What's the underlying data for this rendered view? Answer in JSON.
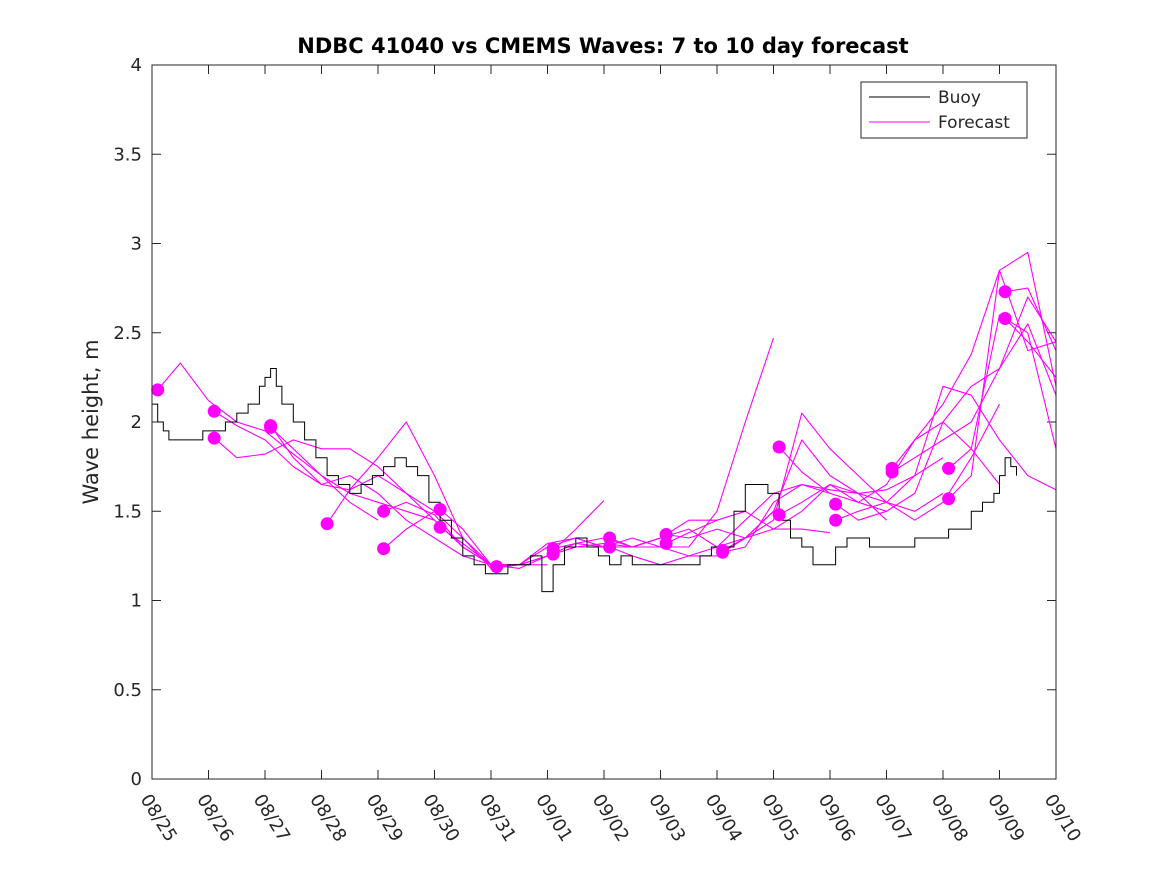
{
  "chart_data": {
    "type": "line",
    "title": "NDBC 41040 vs CMEMS Waves: 7 to 10 day forecast",
    "xlabel": "",
    "ylabel": "Wave height, m",
    "xlim": [
      0,
      16
    ],
    "ylim": [
      0,
      4
    ],
    "x_tick_labels": [
      "08/25",
      "08/26",
      "08/27",
      "08/28",
      "08/29",
      "08/30",
      "08/31",
      "09/01",
      "09/02",
      "09/03",
      "09/04",
      "09/05",
      "09/06",
      "09/07",
      "09/08",
      "09/09",
      "09/10"
    ],
    "y_ticks": [
      0,
      0.5,
      1,
      1.5,
      2,
      2.5,
      3,
      3.5,
      4
    ],
    "y_tick_labels": [
      "0",
      "0.5",
      "1",
      "1.5",
      "2",
      "2.5",
      "3",
      "3.5",
      "4"
    ],
    "legend": {
      "placement": "top-right",
      "entries": [
        {
          "label": "Buoy",
          "color": "#000000"
        },
        {
          "label": "Forecast",
          "color": "#ff00ff"
        }
      ]
    },
    "colors": {
      "buoy": "#000000",
      "forecast": "#ff00ff",
      "axis": "#262626"
    },
    "buoy": {
      "name": "Buoy",
      "x": [
        0,
        0.1,
        0.2,
        0.3,
        0.5,
        0.7,
        0.9,
        1.1,
        1.3,
        1.5,
        1.7,
        1.9,
        2.0,
        2.1,
        2.2,
        2.3,
        2.5,
        2.7,
        2.9,
        3.1,
        3.3,
        3.5,
        3.7,
        3.9,
        4.1,
        4.3,
        4.5,
        4.7,
        4.9,
        5.1,
        5.3,
        5.5,
        5.7,
        5.9,
        6.1,
        6.3,
        6.5,
        6.7,
        6.9,
        7.0,
        7.1,
        7.3,
        7.5,
        7.7,
        7.9,
        8.1,
        8.3,
        8.5,
        8.7,
        8.9,
        9.1,
        9.3,
        9.5,
        9.7,
        9.9,
        10.1,
        10.3,
        10.5,
        10.7,
        10.9,
        11.1,
        11.3,
        11.5,
        11.7,
        11.9,
        12.1,
        12.3,
        12.5,
        12.7,
        12.9,
        13.1,
        13.3,
        13.5,
        13.7,
        13.9,
        14.1,
        14.3,
        14.5,
        14.7,
        14.9,
        15.0,
        15.1,
        15.2,
        15.3
      ],
      "values": [
        2.1,
        2.0,
        1.95,
        1.9,
        1.9,
        1.9,
        1.95,
        1.95,
        2.0,
        2.05,
        2.1,
        2.2,
        2.25,
        2.3,
        2.2,
        2.1,
        2.0,
        1.9,
        1.8,
        1.7,
        1.65,
        1.6,
        1.65,
        1.7,
        1.75,
        1.8,
        1.75,
        1.7,
        1.55,
        1.45,
        1.35,
        1.25,
        1.2,
        1.15,
        1.15,
        1.2,
        1.2,
        1.25,
        1.05,
        1.05,
        1.2,
        1.3,
        1.35,
        1.3,
        1.25,
        1.2,
        1.25,
        1.2,
        1.2,
        1.2,
        1.2,
        1.2,
        1.2,
        1.25,
        1.3,
        1.3,
        1.5,
        1.65,
        1.65,
        1.6,
        1.45,
        1.35,
        1.3,
        1.2,
        1.2,
        1.3,
        1.35,
        1.35,
        1.3,
        1.3,
        1.3,
        1.3,
        1.35,
        1.35,
        1.35,
        1.4,
        1.4,
        1.5,
        1.55,
        1.6,
        1.7,
        1.8,
        1.75,
        1.7
      ]
    },
    "forecasts": [
      {
        "name": "Forecast",
        "x": [
          0.1,
          0.5,
          1.0,
          1.5,
          2.0,
          2.5,
          3.0,
          3.5,
          4.0
        ],
        "values": [
          2.18,
          2.33,
          2.12,
          2.0,
          1.95,
          1.82,
          1.7,
          1.55,
          1.45
        ]
      },
      {
        "name": "Forecast",
        "x": [
          1.1,
          1.5,
          2.0,
          2.5,
          3.0,
          3.5,
          4.0,
          4.5,
          5.0
        ],
        "values": [
          2.06,
          1.98,
          1.9,
          1.75,
          1.65,
          1.62,
          1.7,
          1.6,
          1.5
        ]
      },
      {
        "name": "Forecast",
        "x": [
          1.1,
          1.5,
          2.0,
          2.5,
          3.0,
          3.5,
          4.0,
          4.5,
          5.0
        ],
        "values": [
          1.91,
          1.8,
          1.82,
          1.9,
          1.85,
          1.85,
          1.75,
          1.6,
          1.45
        ]
      },
      {
        "name": "Forecast",
        "x": [
          2.1,
          2.5,
          3.0,
          3.5,
          4.0,
          4.5,
          5.0,
          5.5,
          6.0
        ],
        "values": [
          1.98,
          1.8,
          1.65,
          1.7,
          1.6,
          1.45,
          1.35,
          1.25,
          1.2
        ]
      },
      {
        "name": "Forecast",
        "x": [
          2.1,
          2.5,
          3.0,
          3.5,
          4.0,
          4.5,
          5.0,
          5.5,
          6.0
        ],
        "values": [
          1.97,
          1.85,
          1.7,
          1.6,
          1.55,
          1.5,
          1.45,
          1.3,
          1.2
        ]
      },
      {
        "name": "Forecast",
        "x": [
          3.1,
          3.5,
          4.0,
          4.5,
          5.0,
          5.5,
          6.0,
          6.5,
          7.0
        ],
        "values": [
          1.43,
          1.62,
          1.8,
          2.0,
          1.7,
          1.35,
          1.2,
          1.2,
          1.2
        ]
      },
      {
        "name": "Forecast",
        "x": [
          4.1,
          4.5,
          5.0,
          5.5,
          6.0,
          6.5,
          7.0,
          7.5,
          8.0
        ],
        "values": [
          1.5,
          1.55,
          1.48,
          1.3,
          1.2,
          1.2,
          1.25,
          1.4,
          1.56
        ]
      },
      {
        "name": "Forecast",
        "x": [
          4.1,
          4.5,
          5.0,
          5.5,
          6.0,
          6.5,
          7.0,
          7.5,
          8.0
        ],
        "values": [
          1.29,
          1.4,
          1.5,
          1.35,
          1.18,
          1.2,
          1.32,
          1.35,
          1.3
        ]
      },
      {
        "name": "Forecast",
        "x": [
          5.1,
          5.5,
          6.0,
          6.5,
          7.0,
          7.5,
          8.0,
          8.5,
          9.0
        ],
        "values": [
          1.51,
          1.4,
          1.2,
          1.2,
          1.3,
          1.35,
          1.3,
          1.35,
          1.3
        ]
      },
      {
        "name": "Forecast",
        "x": [
          5.1,
          5.5,
          6.0,
          6.5,
          7.0,
          7.5,
          8.0,
          8.5,
          9.0
        ],
        "values": [
          1.41,
          1.32,
          1.2,
          1.18,
          1.25,
          1.3,
          1.3,
          1.3,
          1.35
        ]
      },
      {
        "name": "Forecast",
        "x": [
          6.1,
          6.5,
          7.0,
          7.5,
          8.0,
          8.5,
          9.0,
          9.5,
          10.0
        ],
        "values": [
          1.19,
          1.2,
          1.25,
          1.32,
          1.3,
          1.3,
          1.35,
          1.45,
          1.45
        ]
      },
      {
        "name": "Forecast",
        "x": [
          7.1,
          7.5,
          8.0,
          8.5,
          9.0,
          9.5,
          10.0,
          10.5,
          11.0
        ],
        "values": [
          1.29,
          1.32,
          1.35,
          1.3,
          1.3,
          1.3,
          1.5,
          2.0,
          2.47
        ]
      },
      {
        "name": "Forecast",
        "x": [
          7.1,
          7.5,
          8.0,
          8.5,
          9.0,
          9.5,
          10.0,
          10.5,
          11.0
        ],
        "values": [
          1.26,
          1.3,
          1.32,
          1.3,
          1.3,
          1.25,
          1.25,
          1.35,
          1.5
        ]
      },
      {
        "name": "Forecast",
        "x": [
          8.1,
          8.5,
          9.0,
          9.5,
          10.0,
          10.5,
          11.0,
          11.5,
          12.0
        ],
        "values": [
          1.35,
          1.3,
          1.35,
          1.4,
          1.3,
          1.35,
          1.4,
          1.4,
          1.38
        ]
      },
      {
        "name": "Forecast",
        "x": [
          8.1,
          8.5,
          9.0,
          9.5,
          10.0,
          10.5,
          11.0,
          11.5,
          12.0
        ],
        "values": [
          1.3,
          1.25,
          1.2,
          1.25,
          1.3,
          1.45,
          1.6,
          1.65,
          1.6
        ]
      },
      {
        "name": "Forecast",
        "x": [
          9.1,
          9.5,
          10.0,
          10.5,
          11.0,
          11.5,
          12.0,
          12.5,
          13.0
        ],
        "values": [
          1.37,
          1.35,
          1.4,
          1.35,
          1.5,
          1.9,
          1.7,
          1.6,
          1.45
        ]
      },
      {
        "name": "Forecast",
        "x": [
          9.1,
          9.5,
          10.0,
          10.5,
          11.0,
          11.5,
          12.0,
          12.5,
          13.0
        ],
        "values": [
          1.32,
          1.38,
          1.45,
          1.5,
          1.4,
          1.5,
          1.65,
          1.55,
          1.5
        ]
      },
      {
        "name": "Forecast",
        "x": [
          10.1,
          10.5,
          11.0,
          11.5,
          12.0,
          12.5,
          13.0,
          13.5,
          14.0
        ],
        "values": [
          1.28,
          1.35,
          1.45,
          2.05,
          1.85,
          1.7,
          1.55,
          1.5,
          1.6
        ]
      },
      {
        "name": "Forecast",
        "x": [
          10.1,
          10.5,
          11.0,
          11.5,
          12.0,
          12.5,
          13.0,
          13.5,
          14.0
        ],
        "values": [
          1.27,
          1.3,
          1.55,
          1.65,
          1.62,
          1.6,
          1.62,
          1.7,
          1.8
        ]
      },
      {
        "name": "Forecast",
        "x": [
          11.1,
          11.5,
          12.0,
          12.5,
          13.0,
          13.5,
          14.0,
          14.5,
          15.0
        ],
        "values": [
          1.86,
          1.72,
          1.6,
          1.55,
          1.65,
          1.9,
          2.0,
          1.85,
          1.65
        ]
      },
      {
        "name": "Forecast",
        "x": [
          11.1,
          11.5,
          12.0,
          12.5,
          13.0,
          13.5,
          14.0,
          14.5,
          15.0
        ],
        "values": [
          1.48,
          1.55,
          1.65,
          1.6,
          1.55,
          1.45,
          1.55,
          1.8,
          2.1
        ]
      },
      {
        "name": "Forecast",
        "x": [
          12.1,
          12.5,
          13.0,
          13.5,
          14.0,
          14.5,
          15.0,
          15.5,
          16.0
        ],
        "values": [
          1.54,
          1.45,
          1.5,
          1.6,
          2.0,
          2.2,
          2.3,
          2.7,
          2.45
        ]
      },
      {
        "name": "Forecast",
        "x": [
          12.1,
          12.5,
          13.0,
          13.5,
          14.0,
          14.5,
          15.0,
          15.5,
          16.0
        ],
        "values": [
          1.45,
          1.5,
          1.55,
          1.7,
          2.2,
          2.15,
          1.9,
          1.7,
          1.62
        ]
      },
      {
        "name": "Forecast",
        "x": [
          13.1,
          13.5,
          14.0,
          14.5,
          15.0,
          15.5,
          16.0
        ],
        "values": [
          1.74,
          1.9,
          2.1,
          2.38,
          2.85,
          2.95,
          2.2
        ]
      },
      {
        "name": "Forecast",
        "x": [
          13.1,
          13.5,
          14.0,
          14.5,
          15.0,
          15.5,
          16.0
        ],
        "values": [
          1.72,
          1.8,
          1.9,
          2.0,
          2.3,
          2.55,
          2.15
        ]
      },
      {
        "name": "Forecast",
        "x": [
          14.1,
          14.5,
          15.0,
          15.5,
          16.0
        ],
        "values": [
          1.74,
          1.85,
          2.6,
          2.5,
          1.85
        ]
      },
      {
        "name": "Forecast",
        "x": [
          14.1,
          14.5,
          15.0,
          15.5,
          16.0
        ],
        "values": [
          1.57,
          1.7,
          2.85,
          2.4,
          2.45
        ]
      },
      {
        "name": "Forecast",
        "x": [
          15.1,
          15.5,
          16.0
        ],
        "values": [
          2.73,
          2.75,
          2.4
        ]
      },
      {
        "name": "Forecast",
        "x": [
          15.1,
          15.5,
          16.0
        ],
        "values": [
          2.58,
          2.45,
          2.25
        ]
      }
    ],
    "forecast_start_points": {
      "x": [
        0.1,
        1.1,
        1.1,
        2.1,
        2.1,
        3.1,
        4.1,
        4.1,
        5.1,
        5.1,
        6.1,
        7.1,
        7.1,
        8.1,
        8.1,
        9.1,
        9.1,
        10.1,
        10.1,
        11.1,
        11.1,
        12.1,
        12.1,
        13.1,
        13.1,
        14.1,
        14.1,
        15.1,
        15.1
      ],
      "values": [
        2.18,
        2.06,
        1.91,
        1.98,
        1.97,
        1.43,
        1.5,
        1.29,
        1.51,
        1.41,
        1.19,
        1.29,
        1.26,
        1.35,
        1.3,
        1.37,
        1.32,
        1.28,
        1.27,
        1.86,
        1.48,
        1.54,
        1.45,
        1.74,
        1.72,
        1.74,
        1.57,
        2.73,
        2.58
      ]
    }
  }
}
